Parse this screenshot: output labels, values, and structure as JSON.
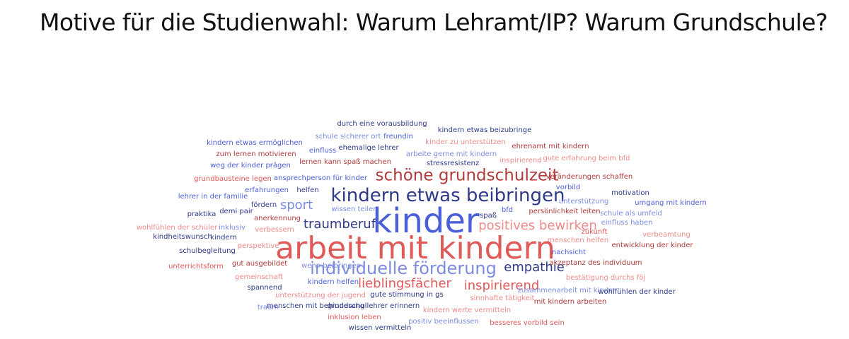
{
  "slide": {
    "title": "Motive für die Studienwahl: Warum Lehramt/IP? Warum Grundschule?"
  },
  "colors": {
    "navy": "#2e3a87",
    "blue": "#4a5fd9",
    "lightblue": "#7b8ce0",
    "darkred": "#b03a3a",
    "red": "#e05a5a",
    "lightred": "#f08a8a"
  },
  "cloud": {
    "words": [
      {
        "text": "durch eine vorausbildung",
        "color": "navy"
      },
      {
        "text": "schule sicherer ort",
        "color": "lightblue"
      },
      {
        "text": "freundin",
        "color": "blue"
      },
      {
        "text": "kindern etwas beizubringe",
        "color": "navy"
      },
      {
        "text": "kindern etwas ermöglichen",
        "color": "blue"
      },
      {
        "text": "kinder zu unterstützen",
        "color": "lightred"
      },
      {
        "text": "ehrenamt mit kindern",
        "color": "darkred"
      },
      {
        "text": "einfluss",
        "color": "blue"
      },
      {
        "text": "ehemalige lehrer",
        "color": "navy"
      },
      {
        "text": "zum lernen motivieren",
        "color": "darkred"
      },
      {
        "text": "arbeite gerne mit kindern",
        "color": "lightblue"
      },
      {
        "text": "inspirierend",
        "color": "lightred"
      },
      {
        "text": "gute erfahrung beim bfd",
        "color": "lightred"
      },
      {
        "text": "lernen kann spaß machen",
        "color": "darkred"
      },
      {
        "text": "stressresistenz",
        "color": "navy"
      },
      {
        "text": "weg der kinder prägen",
        "color": "blue"
      },
      {
        "text": "schöne grundschulzeit",
        "color": "darkred"
      },
      {
        "text": "grundbausteine legen",
        "color": "red"
      },
      {
        "text": "ansprechperson für kinder",
        "color": "blue"
      },
      {
        "text": "veränderungen schaffen",
        "color": "darkred"
      },
      {
        "text": "erfahrungen",
        "color": "blue"
      },
      {
        "text": "helfen",
        "color": "navy"
      },
      {
        "text": "kindern etwas beibringen",
        "color": "navy"
      },
      {
        "text": "vorbild",
        "color": "blue"
      },
      {
        "text": "lehrer in der familie",
        "color": "blue"
      },
      {
        "text": "motivation",
        "color": "navy"
      },
      {
        "text": "unterstützung",
        "color": "lightblue"
      },
      {
        "text": "umgang mit kindern",
        "color": "blue"
      },
      {
        "text": "sport",
        "color": "lightblue"
      },
      {
        "text": "fördern",
        "color": "navy"
      },
      {
        "text": "wissen teilen",
        "color": "lightblue"
      },
      {
        "text": "bfd",
        "color": "blue"
      },
      {
        "text": "persönlichkeit leiten",
        "color": "darkred"
      },
      {
        "text": "schule als umfeld",
        "color": "lightblue"
      },
      {
        "text": "praktika",
        "color": "navy"
      },
      {
        "text": "demi pair",
        "color": "navy"
      },
      {
        "text": "kinder",
        "color": "blue"
      },
      {
        "text": "spaß",
        "color": "navy"
      },
      {
        "text": "anerkennung",
        "color": "darkred"
      },
      {
        "text": "einfluss haben",
        "color": "lightblue"
      },
      {
        "text": "traumberuf",
        "color": "navy"
      },
      {
        "text": "positives bewirken",
        "color": "lightred"
      },
      {
        "text": "wohlfühlen der schüler",
        "color": "lightred"
      },
      {
        "text": "inklusiv",
        "color": "lightblue"
      },
      {
        "text": "verbessern",
        "color": "lightred"
      },
      {
        "text": "zukunft",
        "color": "red"
      },
      {
        "text": "verbeamtung",
        "color": "lightred"
      },
      {
        "text": "kindheitswunsch",
        "color": "navy"
      },
      {
        "text": "kindern",
        "color": "navy"
      },
      {
        "text": "menschen helfen",
        "color": "lightred"
      },
      {
        "text": "arbeit mit kindern",
        "color": "red"
      },
      {
        "text": "perspektive",
        "color": "lightred"
      },
      {
        "text": "entwicklung der kinder",
        "color": "darkred"
      },
      {
        "text": "schulbegleitung",
        "color": "navy"
      },
      {
        "text": "nachsicht",
        "color": "blue"
      },
      {
        "text": "gut ausgebildet",
        "color": "darkred"
      },
      {
        "text": "wenn beibringen",
        "color": "lightblue"
      },
      {
        "text": "unterrichtsform",
        "color": "red"
      },
      {
        "text": "individuelle förderung",
        "color": "lightblue"
      },
      {
        "text": "empathie",
        "color": "navy"
      },
      {
        "text": "akzeptanz des individuum",
        "color": "darkred"
      },
      {
        "text": "bestätigung durchs föj",
        "color": "lightred"
      },
      {
        "text": "gemeinschaft",
        "color": "lightred"
      },
      {
        "text": "kindern helfen",
        "color": "blue"
      },
      {
        "text": "lieblingsfächer",
        "color": "red"
      },
      {
        "text": "inspirierend",
        "color": "red"
      },
      {
        "text": "spannend",
        "color": "navy"
      },
      {
        "text": "zusammenarbeit mit kinder",
        "color": "lightblue"
      },
      {
        "text": "wohlfühlen der kinder",
        "color": "navy"
      },
      {
        "text": "unterstützung der jugend",
        "color": "lightred"
      },
      {
        "text": "gute stimmung in gs",
        "color": "navy"
      },
      {
        "text": "sinnhafte tätigkeit",
        "color": "lightred"
      },
      {
        "text": "mit kindern arbeiten",
        "color": "darkred"
      },
      {
        "text": "traum",
        "color": "lightblue"
      },
      {
        "text": "menschen mit behinderung",
        "color": "navy"
      },
      {
        "text": "grundschullehrer erinnern",
        "color": "navy"
      },
      {
        "text": "kindern werte vermitteln",
        "color": "lightred"
      },
      {
        "text": "inklusion leben",
        "color": "red"
      },
      {
        "text": "positiv beeinflussen",
        "color": "lightblue"
      },
      {
        "text": "besseres vorbild sein",
        "color": "red"
      },
      {
        "text": "wissen vermitteln",
        "color": "navy"
      }
    ]
  }
}
